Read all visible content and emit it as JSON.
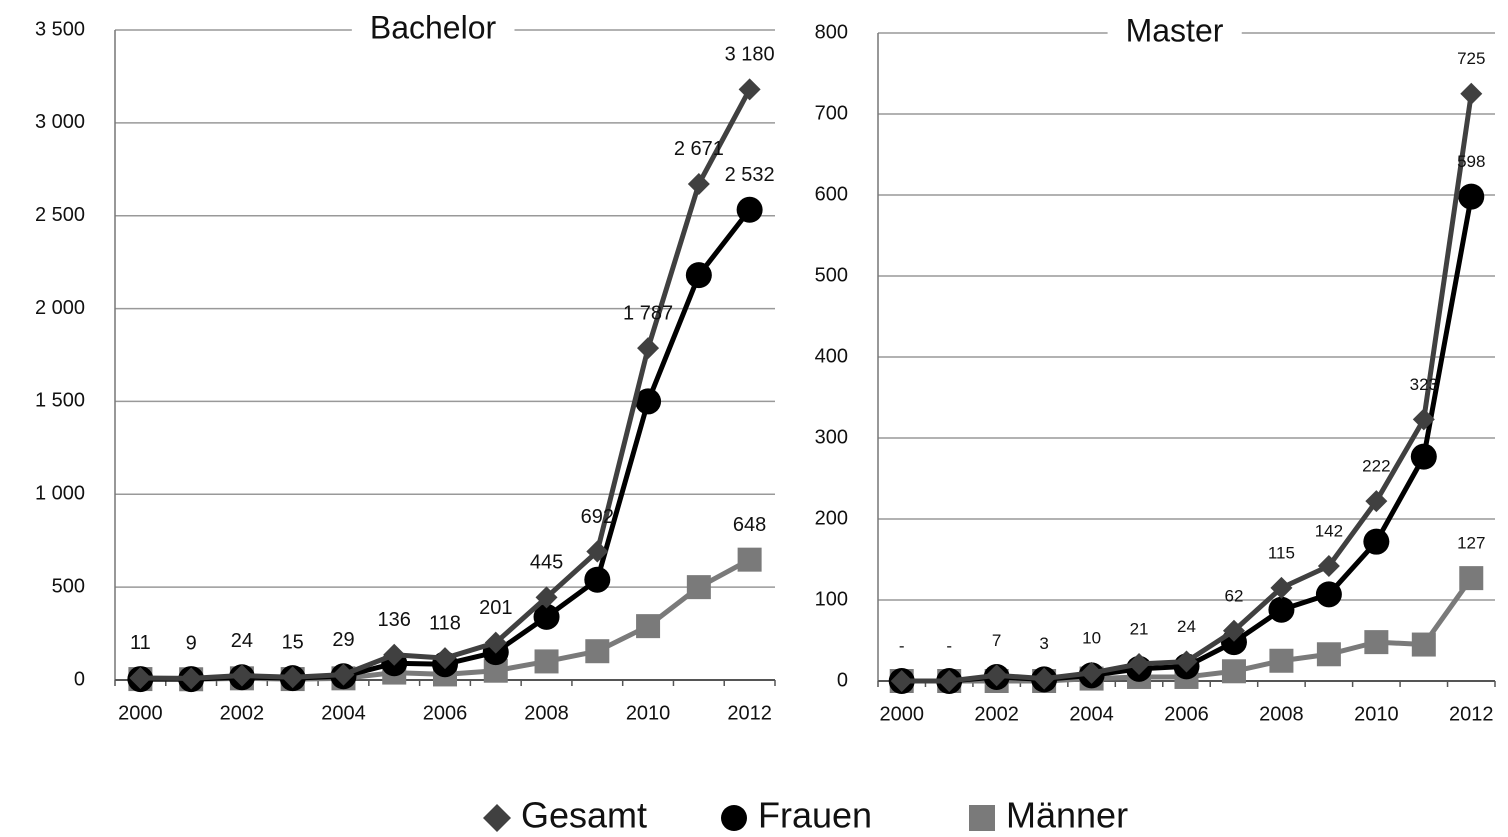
{
  "chart_data": [
    {
      "type": "line",
      "title": "Bachelor",
      "categories": [
        "2000",
        null,
        "2002",
        null,
        "2004",
        null,
        "2006",
        null,
        "2008",
        null,
        "2010",
        null,
        "2012"
      ],
      "ylim": [
        0,
        3500
      ],
      "yticks": [
        0,
        500,
        {
          "value": 1000,
          "label": "1 000"
        },
        {
          "value": 1500,
          "label": "1 500"
        },
        {
          "value": 2000,
          "label": "2 000"
        },
        {
          "value": 2500,
          "label": "2 500"
        },
        {
          "value": 3000,
          "label": "3 000"
        },
        {
          "value": 3500,
          "label": "3 500"
        }
      ],
      "grid": true,
      "series": [
        {
          "name": "Gesamt",
          "color": "#404040",
          "marker": "diamond",
          "values": [
            11,
            9,
            24,
            15,
            29,
            136,
            118,
            201,
            445,
            692,
            1787,
            2671,
            3180
          ],
          "value_labels": [
            "11",
            "9",
            "24",
            "15",
            "29",
            "136",
            "118",
            "201",
            "445",
            "692",
            "1 787",
            "2 671",
            "3 180"
          ]
        },
        {
          "name": "Frauen",
          "color": "#000000",
          "marker": "circle",
          "values": [
            5,
            5,
            15,
            10,
            20,
            90,
            85,
            150,
            340,
            540,
            1500,
            2180,
            2532
          ],
          "value_labels": [
            null,
            null,
            null,
            null,
            null,
            null,
            null,
            null,
            null,
            null,
            null,
            null,
            "2 532"
          ]
        },
        {
          "name": "Männer",
          "color": "#7a7a7a",
          "marker": "square",
          "values": [
            5,
            4,
            9,
            5,
            9,
            40,
            30,
            50,
            100,
            155,
            290,
            500,
            648
          ],
          "value_labels": [
            null,
            null,
            null,
            null,
            null,
            null,
            null,
            null,
            null,
            null,
            null,
            null,
            "648"
          ]
        }
      ]
    },
    {
      "type": "line",
      "title": "Master",
      "categories": [
        "2000",
        null,
        "2002",
        null,
        "2004",
        null,
        "2006",
        null,
        "2008",
        null,
        "2010",
        null,
        "2012"
      ],
      "ylim": [
        0,
        800
      ],
      "yticks": [
        0,
        100,
        200,
        300,
        400,
        500,
        600,
        700,
        800
      ],
      "grid": true,
      "series": [
        {
          "name": "Gesamt",
          "color": "#404040",
          "marker": "diamond",
          "values": [
            0,
            0,
            7,
            3,
            10,
            21,
            24,
            62,
            115,
            142,
            222,
            323,
            725
          ],
          "value_labels": [
            "-",
            "-",
            "7",
            "3",
            "10",
            "21",
            "24",
            "62",
            "115",
            "142",
            "222",
            "323",
            "725"
          ]
        },
        {
          "name": "Frauen",
          "color": "#000000",
          "marker": "circle",
          "values": [
            0,
            0,
            5,
            2,
            7,
            15,
            18,
            48,
            88,
            107,
            172,
            277,
            598
          ],
          "value_labels": [
            null,
            null,
            null,
            null,
            null,
            null,
            null,
            null,
            null,
            null,
            null,
            null,
            "598"
          ]
        },
        {
          "name": "Männer",
          "color": "#7a7a7a",
          "marker": "square",
          "values": [
            0,
            0,
            0,
            0,
            3,
            5,
            5,
            12,
            25,
            33,
            48,
            45,
            127
          ],
          "value_labels": [
            null,
            null,
            null,
            null,
            null,
            null,
            null,
            null,
            null,
            null,
            null,
            null,
            "127"
          ]
        }
      ]
    }
  ]
}
